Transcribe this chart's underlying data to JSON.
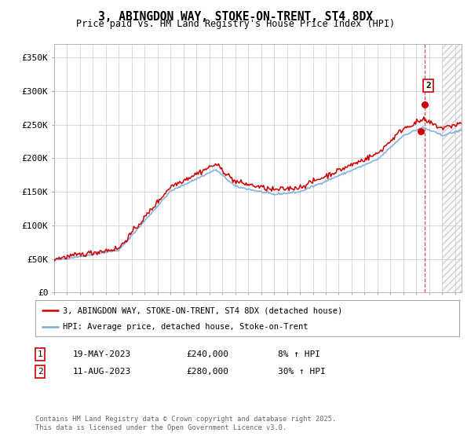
{
  "title": "3, ABINGDON WAY, STOKE-ON-TRENT, ST4 8DX",
  "subtitle": "Price paid vs. HM Land Registry's House Price Index (HPI)",
  "yticks": [
    0,
    50000,
    100000,
    150000,
    200000,
    250000,
    300000,
    350000
  ],
  "ytick_labels": [
    "£0",
    "£50K",
    "£100K",
    "£150K",
    "£200K",
    "£250K",
    "£300K",
    "£350K"
  ],
  "ylim": [
    0,
    370000
  ],
  "xlim_start": 1995,
  "xlim_end": 2026.5,
  "hpi_color": "#7aaadd",
  "price_color": "#cc0000",
  "marker1_date": 2023.37,
  "marker1_price": 240000,
  "marker1_label": "1",
  "marker2_date": 2023.62,
  "marker2_price": 280000,
  "marker2_label": "2",
  "legend_line1": "3, ABINGDON WAY, STOKE-ON-TRENT, ST4 8DX (detached house)",
  "legend_line2": "HPI: Average price, detached house, Stoke-on-Trent",
  "table_row1": [
    "1",
    "19-MAY-2023",
    "£240,000",
    "8% ↑ HPI"
  ],
  "table_row2": [
    "2",
    "11-AUG-2023",
    "£280,000",
    "30% ↑ HPI"
  ],
  "footer": "Contains HM Land Registry data © Crown copyright and database right 2025.\nThis data is licensed under the Open Government Licence v3.0.",
  "background_color": "#ffffff",
  "grid_color": "#cccccc",
  "future_start": 2025.0,
  "hpi_curve": {
    "breakpoints": [
      1995,
      2000,
      2004,
      2007.5,
      2009,
      2012,
      2014,
      2020,
      2022,
      2023.5,
      2025,
      2026.5
    ],
    "values": [
      48000,
      63000,
      151000,
      183000,
      158000,
      146000,
      150000,
      198000,
      234000,
      246000,
      234000,
      241500
    ]
  },
  "noise_seed": 42,
  "hpi_noise_std": 700,
  "price_noise_std": 2000,
  "price_scale": 1.045
}
